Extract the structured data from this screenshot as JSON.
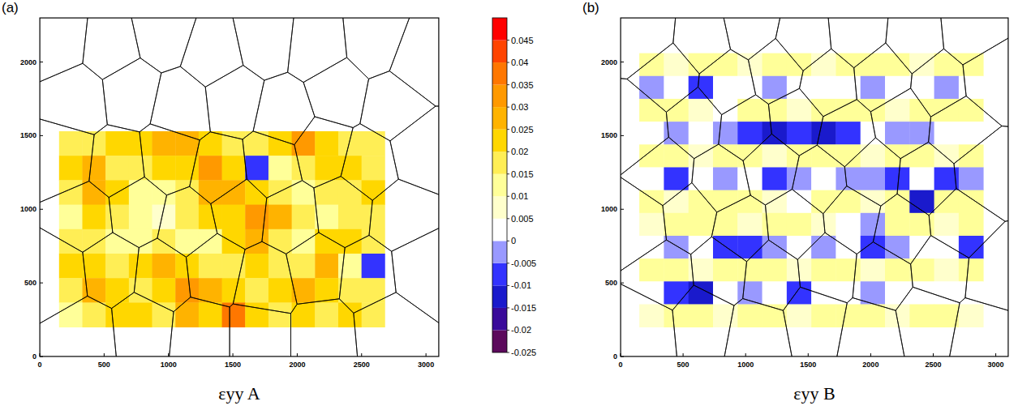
{
  "chart_data": [
    {
      "type": "heatmap",
      "panel": "(a)",
      "xlabel": "εyy A",
      "xlim": [
        0,
        3100
      ],
      "ylim": [
        0,
        2300
      ],
      "xticks": [
        0,
        500,
        1000,
        1500,
        2000,
        2500,
        3000
      ],
      "yticks": [
        0,
        500,
        1000,
        1500,
        2000
      ],
      "extent": {
        "x": [
          150,
          2680
        ],
        "y": [
          200,
          1530
        ]
      },
      "cells": [
        [
          0.018,
          0.015,
          0.02,
          0.022,
          0.025,
          0.028,
          0.02,
          0.018,
          0.015,
          0.02,
          0.03,
          0.02,
          0.018,
          0.015
        ],
        [
          0.02,
          0.025,
          0.018,
          0.015,
          0.02,
          0.022,
          0.03,
          0.02,
          -0.006,
          0.012,
          0.018,
          0.022,
          0.02,
          0.015
        ],
        [
          0.015,
          0.028,
          0.022,
          0.012,
          0.01,
          0.018,
          0.025,
          0.028,
          0.02,
          0.015,
          0.01,
          0.015,
          0.018,
          0.02
        ],
        [
          0.012,
          0.02,
          0.015,
          0.01,
          0.008,
          0.015,
          0.02,
          0.022,
          0.032,
          0.025,
          0.018,
          0.012,
          0.015,
          0.018
        ],
        [
          0.018,
          0.015,
          0.01,
          0.012,
          0.015,
          0.01,
          0.012,
          0.02,
          0.025,
          0.015,
          0.01,
          0.02,
          0.022,
          0.015
        ],
        [
          0.022,
          0.02,
          0.015,
          0.02,
          0.025,
          0.02,
          0.018,
          0.015,
          0.02,
          0.018,
          0.015,
          0.025,
          0.012,
          -0.008
        ],
        [
          0.015,
          0.025,
          0.02,
          0.015,
          0.022,
          0.03,
          0.025,
          0.02,
          0.015,
          0.02,
          0.028,
          0.02,
          0.018,
          0.015
        ],
        [
          0.012,
          0.018,
          0.022,
          0.02,
          0.018,
          0.025,
          0.02,
          0.035,
          0.022,
          0.015,
          0.02,
          0.018,
          0.02,
          0.015
        ]
      ],
      "grain_seeds": [
        [
          150,
          2150
        ],
        [
          550,
          2100
        ],
        [
          950,
          2200
        ],
        [
          1350,
          2050
        ],
        [
          1750,
          2150
        ],
        [
          2150,
          2100
        ],
        [
          2600,
          2150
        ],
        [
          2950,
          2000
        ],
        [
          300,
          1750
        ],
        [
          700,
          1800
        ],
        [
          1100,
          1700
        ],
        [
          1500,
          1750
        ],
        [
          1900,
          1650
        ],
        [
          2300,
          1800
        ],
        [
          2750,
          1700
        ],
        [
          200,
          1350
        ],
        [
          600,
          1300
        ],
        [
          1000,
          1350
        ],
        [
          1400,
          1250
        ],
        [
          1800,
          1300
        ],
        [
          2200,
          1400
        ],
        [
          2550,
          1300
        ],
        [
          2950,
          1400
        ],
        [
          350,
          950
        ],
        [
          750,
          1000
        ],
        [
          1150,
          900
        ],
        [
          1550,
          1000
        ],
        [
          1950,
          950
        ],
        [
          2350,
          1000
        ],
        [
          2800,
          950
        ],
        [
          150,
          550
        ],
        [
          550,
          600
        ],
        [
          950,
          550
        ],
        [
          1350,
          600
        ],
        [
          1750,
          500
        ],
        [
          2150,
          600
        ],
        [
          2550,
          550
        ],
        [
          2950,
          600
        ],
        [
          350,
          150
        ],
        [
          800,
          200
        ],
        [
          1250,
          150
        ],
        [
          1700,
          150
        ],
        [
          2200,
          150
        ],
        [
          2700,
          200
        ]
      ],
      "colorbar": {
        "range": [
          -0.025,
          0.05
        ],
        "ticks": [
          -0.025,
          -0.02,
          -0.015,
          -0.01,
          -0.005,
          0,
          0.005,
          0.01,
          0.015,
          0.02,
          0.025,
          0.03,
          0.035,
          0.04,
          0.045
        ],
        "colors": [
          "#5c0a5c",
          "#3a0a9a",
          "#1a1acc",
          "#3333ff",
          "#9999ff",
          "#ffffff",
          "#ffffcc",
          "#ffff99",
          "#ffee55",
          "#ffd700",
          "#ffb300",
          "#ff9900",
          "#ff7700",
          "#ff4400",
          "#ff0000"
        ]
      }
    },
    {
      "type": "heatmap",
      "panel": "(b)",
      "xlabel": "εyy B",
      "xlim": [
        0,
        3100
      ],
      "ylim": [
        0,
        2300
      ],
      "xticks": [
        0,
        500,
        1000,
        1500,
        2000,
        2500,
        3000
      ],
      "yticks": [
        0,
        500,
        1000,
        1500,
        2000
      ],
      "extent": {
        "x": [
          150,
          2900
        ],
        "y": [
          200,
          2060
        ]
      },
      "cells": [
        [
          0.01,
          0.008,
          0.012,
          0.01,
          0.008,
          0.01,
          0.012,
          0.008,
          0.01,
          0.012,
          0.01,
          0.008,
          0.01,
          0.012
        ],
        [
          -0.004,
          0.002,
          -0.006,
          0.003,
          0.002,
          -0.004,
          0.002,
          0.003,
          0.002,
          -0.004,
          0.003,
          0.002,
          -0.003,
          0.002
        ],
        [
          0.012,
          0.01,
          0.008,
          0.002,
          0.01,
          0.012,
          0.008,
          0.01,
          0.012,
          0.01,
          0.008,
          0.01,
          0.012,
          0.01
        ],
        [
          0.003,
          -0.005,
          0.002,
          -0.004,
          -0.006,
          -0.012,
          -0.008,
          -0.015,
          -0.006,
          0.002,
          -0.004,
          -0.005,
          0.002,
          0.003
        ],
        [
          0.01,
          0.012,
          0.008,
          0.01,
          0.012,
          0.008,
          0.01,
          0.012,
          0.01,
          0.008,
          0.012,
          0.01,
          0.008,
          0.01
        ],
        [
          0.002,
          -0.006,
          0.003,
          -0.004,
          0.002,
          -0.006,
          -0.004,
          0.002,
          -0.005,
          -0.004,
          -0.008,
          0.002,
          -0.006,
          -0.004
        ],
        [
          0.012,
          0.008,
          0.01,
          0.012,
          0.01,
          0.008,
          0.002,
          0.01,
          0.012,
          0.008,
          0.01,
          -0.012,
          0.01,
          0.012
        ],
        [
          0.008,
          0.01,
          0.012,
          0.01,
          0.008,
          0.012,
          0.01,
          0.008,
          0.002,
          -0.004,
          0.012,
          0.01,
          0.008,
          0.01
        ],
        [
          0.002,
          -0.004,
          0.003,
          -0.006,
          -0.01,
          -0.004,
          0.002,
          -0.005,
          0.003,
          -0.006,
          -0.004,
          0.002,
          0.003,
          -0.008
        ],
        [
          0.01,
          0.012,
          0.008,
          0.01,
          0.012,
          0.01,
          0.008,
          0.012,
          0.01,
          0.008,
          0.01,
          0.012,
          0.008,
          0.01
        ],
        [
          0.003,
          -0.008,
          -0.012,
          0.002,
          -0.004,
          0.003,
          -0.006,
          0.002,
          0.003,
          -0.005,
          0.002,
          0.003,
          0.002,
          0.003
        ],
        [
          0.008,
          0.01,
          0.012,
          0.008,
          0.01,
          0.012,
          0.008,
          0.01,
          0.012,
          0.01,
          0.008,
          0.01,
          0.012,
          0.008
        ]
      ],
      "grain_seeds": [
        [
          200,
          2200
        ],
        [
          650,
          2150
        ],
        [
          1050,
          2250
        ],
        [
          1450,
          2150
        ],
        [
          1900,
          2200
        ],
        [
          2350,
          2150
        ],
        [
          2800,
          2200
        ],
        [
          400,
          1900
        ],
        [
          850,
          1850
        ],
        [
          1250,
          1950
        ],
        [
          1650,
          1850
        ],
        [
          2100,
          1900
        ],
        [
          2550,
          1850
        ],
        [
          2950,
          1900
        ],
        [
          150,
          1550
        ],
        [
          600,
          1600
        ],
        [
          1000,
          1550
        ],
        [
          1400,
          1600
        ],
        [
          1800,
          1500
        ],
        [
          2250,
          1600
        ],
        [
          2700,
          1550
        ],
        [
          350,
          1250
        ],
        [
          800,
          1200
        ],
        [
          1200,
          1300
        ],
        [
          1600,
          1200
        ],
        [
          2000,
          1250
        ],
        [
          2450,
          1200
        ],
        [
          2900,
          1250
        ],
        [
          150,
          900
        ],
        [
          550,
          950
        ],
        [
          950,
          850
        ],
        [
          1400,
          900
        ],
        [
          1850,
          950
        ],
        [
          2250,
          850
        ],
        [
          2700,
          900
        ],
        [
          350,
          550
        ],
        [
          800,
          600
        ],
        [
          1200,
          550
        ],
        [
          1650,
          600
        ],
        [
          2100,
          550
        ],
        [
          2550,
          600
        ],
        [
          3000,
          550
        ],
        [
          200,
          200
        ],
        [
          650,
          250
        ],
        [
          1100,
          150
        ],
        [
          1550,
          250
        ],
        [
          2000,
          150
        ],
        [
          2450,
          250
        ],
        [
          2900,
          150
        ]
      ]
    }
  ]
}
